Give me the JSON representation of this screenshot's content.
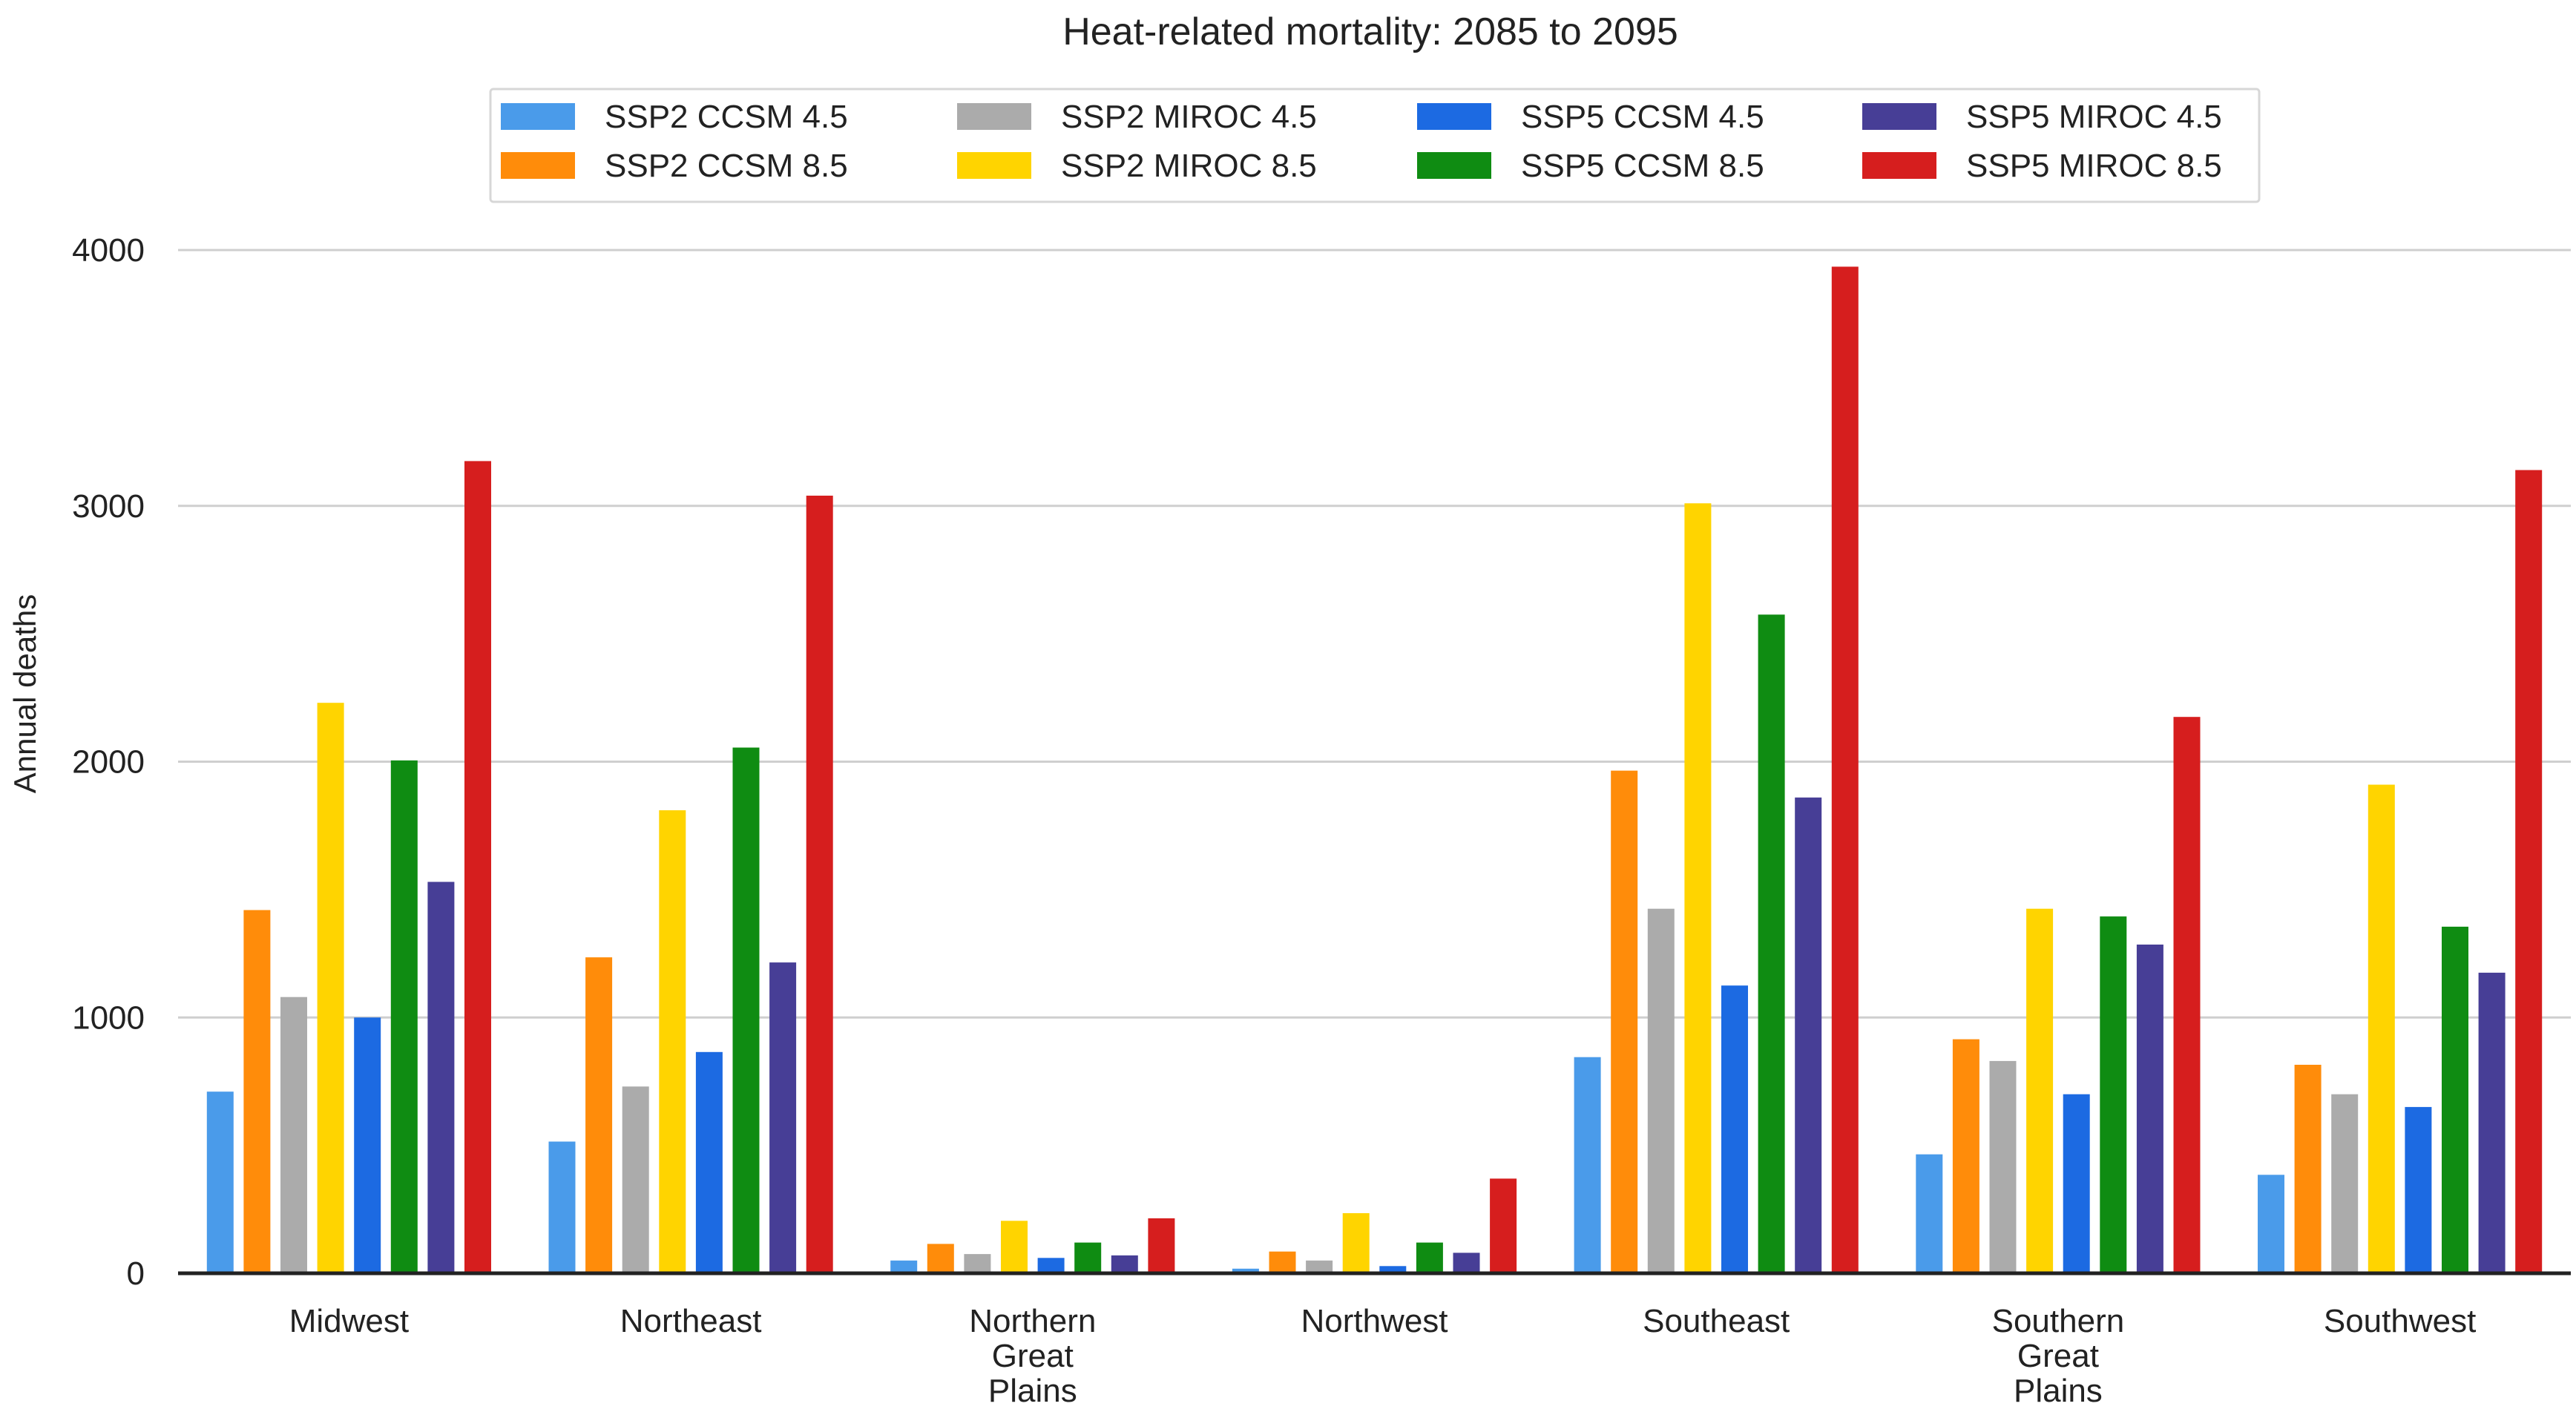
{
  "chart_data": {
    "type": "bar",
    "title": "Heat-related mortality: 2085 to 2095",
    "xlabel": "",
    "ylabel": "Annual deaths",
    "ylim": [
      0,
      4000
    ],
    "yticks": [
      0,
      1000,
      2000,
      3000,
      4000
    ],
    "grid": true,
    "legend_position": "top",
    "categories": [
      "Midwest",
      "Northeast",
      "Northern\nGreat\nPlains",
      "Northwest",
      "Southeast",
      "Southern\nGreat\nPlains",
      "Southwest"
    ],
    "series": [
      {
        "name": "SSP2 CCSM 4.5",
        "color": "#4A9BEA",
        "values": [
          710,
          515,
          50,
          18,
          845,
          465,
          385
        ]
      },
      {
        "name": "SSP2 CCSM 8.5",
        "color": "#FF8C0A",
        "values": [
          1420,
          1235,
          115,
          85,
          1965,
          915,
          815
        ]
      },
      {
        "name": "SSP2 MIROC 4.5",
        "color": "#ABABAB",
        "values": [
          1080,
          730,
          75,
          50,
          1425,
          830,
          700
        ]
      },
      {
        "name": "SSP2 MIROC 8.5",
        "color": "#FFD400",
        "values": [
          2230,
          1810,
          205,
          235,
          3010,
          1425,
          1910
        ]
      },
      {
        "name": "SSP5 CCSM 4.5",
        "color": "#1C6AE2",
        "values": [
          1000,
          865,
          60,
          28,
          1125,
          700,
          650
        ]
      },
      {
        "name": "SSP5 CCSM 8.5",
        "color": "#0F8C12",
        "values": [
          2005,
          2055,
          120,
          120,
          2575,
          1395,
          1355
        ]
      },
      {
        "name": "SSP5 MIROC 4.5",
        "color": "#473E96",
        "values": [
          1530,
          1215,
          70,
          80,
          1860,
          1285,
          1175
        ]
      },
      {
        "name": "SSP5 MIROC 8.5",
        "color": "#D61E1E",
        "values": [
          3175,
          3040,
          215,
          370,
          3935,
          2175,
          3140
        ]
      }
    ]
  }
}
